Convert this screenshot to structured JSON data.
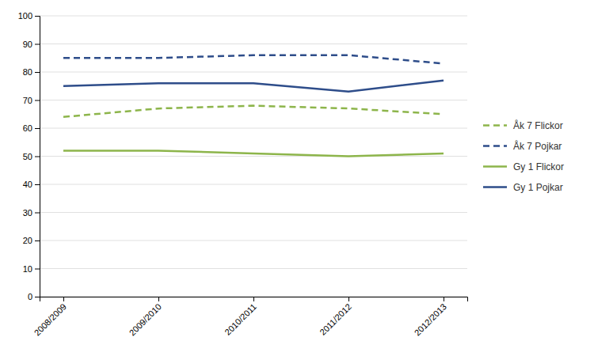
{
  "chart_data": {
    "type": "line",
    "categories": [
      "2008/2009",
      "2009/2010",
      "2010/2011",
      "2011/2012",
      "2012/2013"
    ],
    "series": [
      {
        "name": "Åk 7 Flickor",
        "color": "#8db54b",
        "line_style": "dashed",
        "values": [
          64,
          67,
          68,
          67,
          65
        ]
      },
      {
        "name": "Åk 7 Pojkar",
        "color": "#2e4d8a",
        "line_style": "dashed",
        "values": [
          85,
          85,
          86,
          86,
          83
        ]
      },
      {
        "name": "Gy 1 Flickor",
        "color": "#8db54b",
        "line_style": "solid",
        "values": [
          52,
          52,
          51,
          50,
          51
        ]
      },
      {
        "name": "Gy 1 Pojkar",
        "color": "#2e4d8a",
        "line_style": "solid",
        "values": [
          75,
          76,
          76,
          73,
          77
        ]
      }
    ],
    "ylim": [
      0,
      100
    ],
    "yticks": [
      0,
      10,
      20,
      30,
      40,
      50,
      60,
      70,
      80,
      90,
      100
    ],
    "grid": true,
    "legend": "right"
  }
}
